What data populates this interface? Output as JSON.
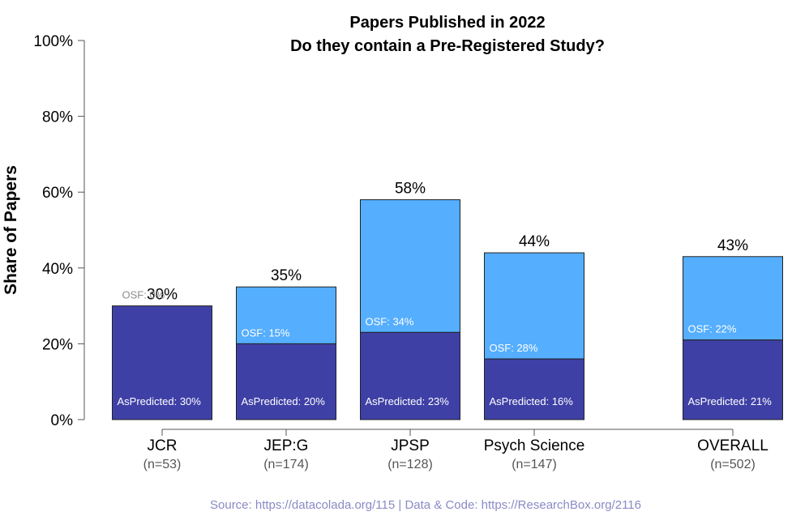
{
  "chart_data": {
    "type": "bar",
    "stacked": true,
    "title": [
      "Papers Published in 2022",
      "Do they contain a Pre-Registered Study?"
    ],
    "xlabel": "",
    "ylabel": "Share of Papers",
    "ylim": [
      0,
      100
    ],
    "yticks": [
      "0%",
      "20%",
      "40%",
      "60%",
      "80%",
      "100%"
    ],
    "categories": [
      "JCR",
      "JEP:G",
      "JPSP",
      "Psych Science",
      "OVERALL"
    ],
    "sample_sizes": [
      "(n=53)",
      "(n=174)",
      "(n=128)",
      "(n=147)",
      "(n=502)"
    ],
    "totals": [
      30,
      35,
      58,
      44,
      43
    ],
    "total_labels": [
      "30%",
      "35%",
      "58%",
      "44%",
      "43%"
    ],
    "series": [
      {
        "name": "AsPredicted",
        "color": "#3f40a6",
        "values": [
          30,
          20,
          23,
          16,
          21
        ],
        "labels": [
          "AsPredicted: 30%",
          "AsPredicted: 20%",
          "AsPredicted: 23%",
          "AsPredicted: 16%",
          "AsPredicted: 21%"
        ]
      },
      {
        "name": "OSF",
        "color": "#55aefe",
        "values": [
          0,
          15,
          34,
          28,
          22
        ],
        "labels": [
          "OSF: 0%",
          "OSF: 15%",
          "OSF: 34%",
          "OSF: 28%",
          "OSF: 22%"
        ]
      }
    ],
    "grid": false,
    "legend": "none"
  },
  "source_text": "Source: https://datacolada.org/115  |  Data & Code: https://ResearchBox.org/2116"
}
